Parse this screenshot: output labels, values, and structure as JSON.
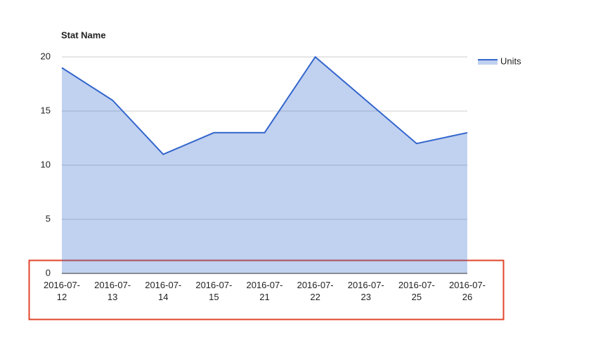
{
  "chart_data": {
    "type": "area",
    "title": "Stat Name",
    "categories": [
      "2016-07-12",
      "2016-07-13",
      "2016-07-14",
      "2016-07-15",
      "2016-07-21",
      "2016-07-22",
      "2016-07-23",
      "2016-07-25",
      "2016-07-26"
    ],
    "series": [
      {
        "name": "Units",
        "color": "#3366cc",
        "values": [
          19,
          16,
          11,
          13,
          13,
          20,
          16,
          12,
          13
        ]
      }
    ],
    "ylim": [
      0,
      20
    ],
    "yticks": [
      0,
      5,
      10,
      15,
      20
    ],
    "grid": true,
    "legend": "right"
  }
}
